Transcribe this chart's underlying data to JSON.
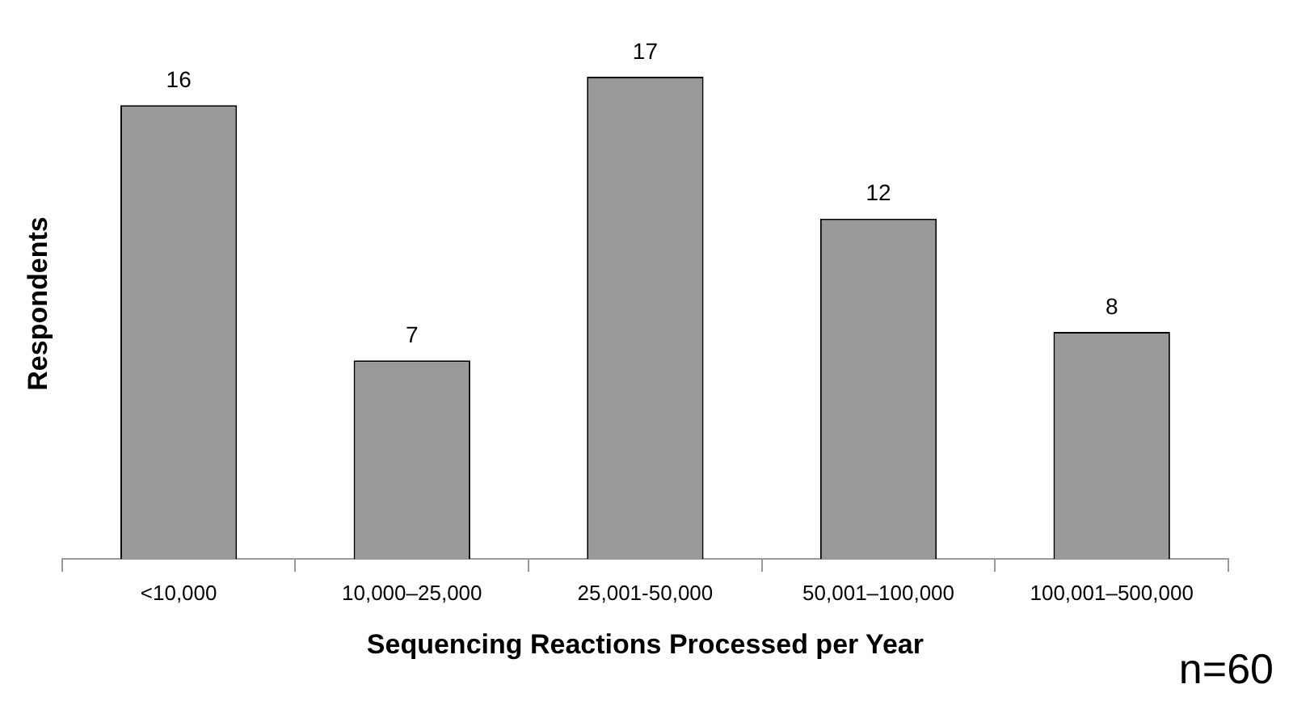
{
  "chart_data": {
    "type": "bar",
    "xlabel": "Sequencing Reactions Processed per Year",
    "ylabel": "Respondents",
    "categories": [
      "<10,000",
      "10,000–25,000",
      "25,001-50,000",
      "50,001–100,000",
      "100,001–500,000"
    ],
    "values": [
      16,
      7,
      17,
      12,
      8
    ],
    "color": "#999999",
    "data_labels": true,
    "grid": false,
    "legend": false,
    "annotations": [
      "n=60"
    ]
  }
}
